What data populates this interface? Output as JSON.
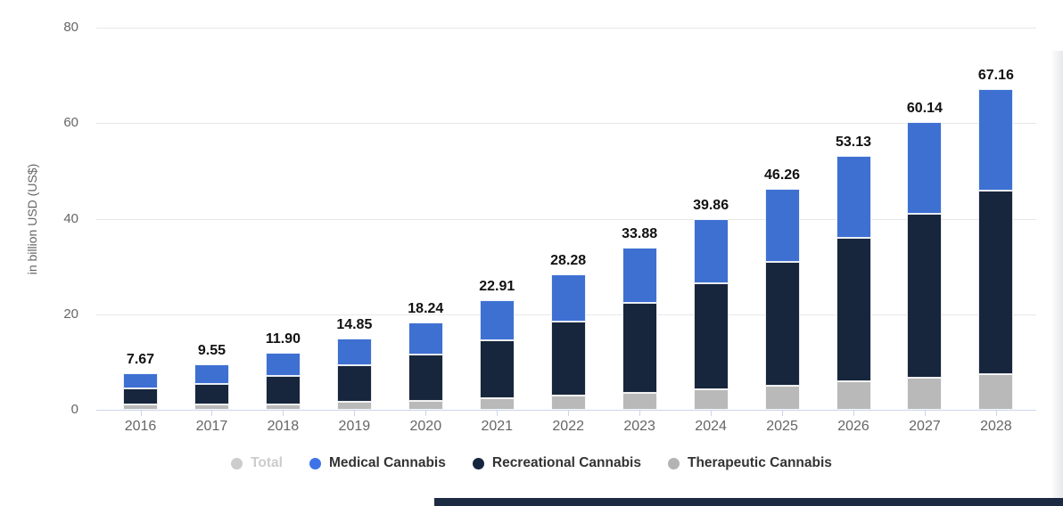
{
  "chart_data": {
    "type": "bar",
    "stacked": true,
    "title": "",
    "xlabel": "",
    "ylabel": "in billion USD (US$)",
    "ylim": [
      0,
      80
    ],
    "yticks": [
      0,
      20,
      40,
      60,
      80
    ],
    "grid": true,
    "legend_position": "bottom",
    "categories": [
      "2016",
      "2017",
      "2018",
      "2019",
      "2020",
      "2021",
      "2022",
      "2023",
      "2024",
      "2025",
      "2026",
      "2027",
      "2028"
    ],
    "series": [
      {
        "name": "Therapeutic Cannabis",
        "color": "#b9b9b9",
        "values": [
          1.05,
          1.1,
          1.2,
          1.65,
          1.9,
          2.5,
          2.9,
          3.6,
          4.3,
          5.1,
          5.9,
          6.7,
          7.4
        ]
      },
      {
        "name": "Recreational Cannabis",
        "color": "#17263c",
        "values": [
          3.5,
          4.35,
          5.9,
          7.65,
          9.6,
          12.1,
          15.5,
          18.7,
          22.2,
          25.9,
          30.1,
          34.4,
          38.5
        ]
      },
      {
        "name": "Medical Cannabis",
        "color": "#3e70d2",
        "values": [
          3.12,
          4.1,
          4.8,
          5.55,
          6.74,
          8.31,
          9.88,
          11.58,
          13.36,
          15.26,
          17.13,
          19.04,
          21.26
        ]
      }
    ],
    "totals": [
      7.67,
      9.55,
      11.9,
      14.85,
      18.24,
      22.91,
      28.28,
      33.88,
      39.86,
      46.26,
      53.13,
      60.14,
      67.16
    ],
    "total_labels": [
      "7.67",
      "9.55",
      "11.90",
      "14.85",
      "18.24",
      "22.91",
      "28.28",
      "33.88",
      "39.86",
      "46.26",
      "53.13",
      "60.14",
      "67.16"
    ],
    "legend": [
      {
        "label": "Total",
        "color": "#cccccc",
        "disabled": true
      },
      {
        "label": "Medical Cannabis",
        "color": "#3d73e6",
        "disabled": false
      },
      {
        "label": "Recreational Cannabis",
        "color": "#16263e",
        "disabled": false
      },
      {
        "label": "Therapeutic Cannabis",
        "color": "#b3b3b3",
        "disabled": false
      }
    ]
  },
  "colors": {
    "axis_text": "#666666",
    "grid_line": "#e7e7e7",
    "axis_line": "#ccd6eb",
    "value_label": "#111111",
    "legend_text": "#333333",
    "legend_disabled_text": "#cccccc",
    "footer_bar": "#1c2b41",
    "scroll_strip": "#e6e8eb"
  }
}
